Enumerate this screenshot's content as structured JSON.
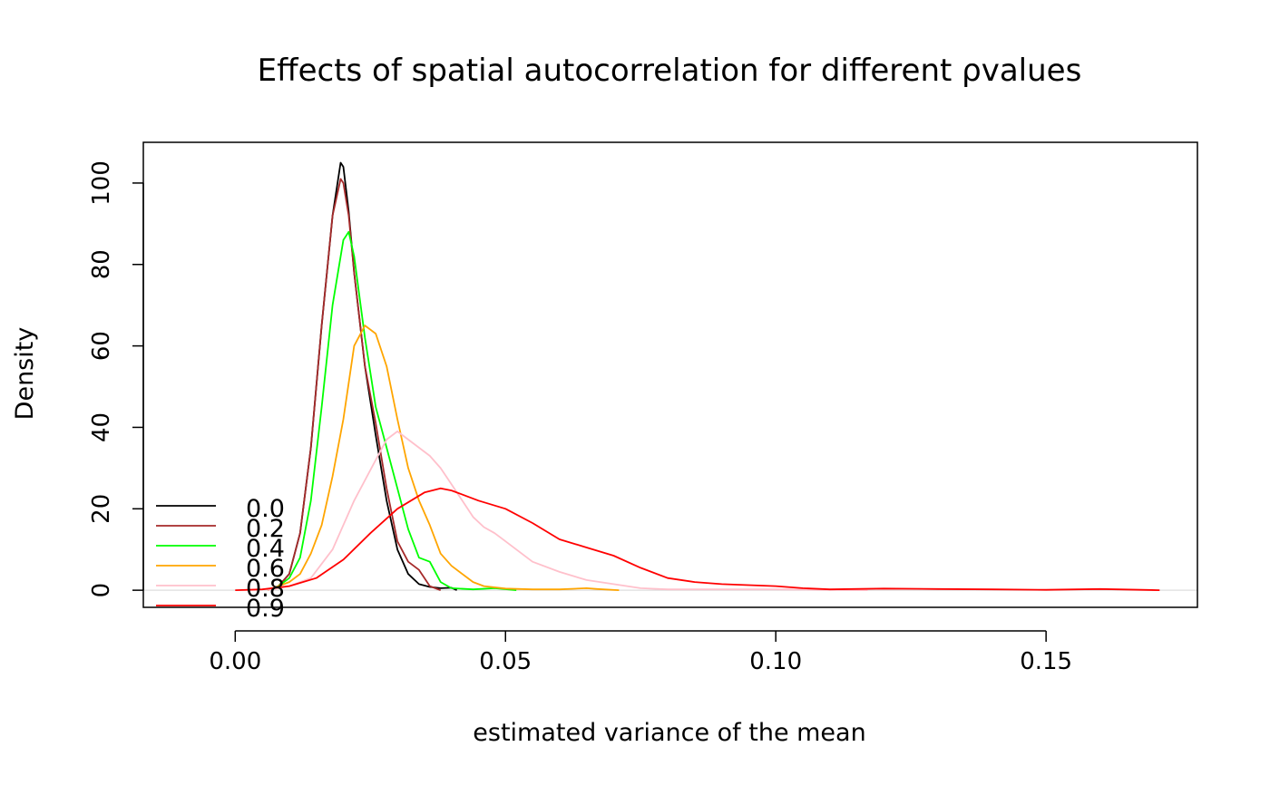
{
  "chart_data": {
    "type": "line",
    "title": "Effects of spatial autocorrelation for different ρvalues",
    "xlabel": "estimated variance of the mean",
    "ylabel": "Density",
    "xlim": [
      -0.017,
      0.178
    ],
    "ylim": [
      -4.2,
      110
    ],
    "xticks": [
      {
        "value": 0.0,
        "label": "0.00"
      },
      {
        "value": 0.05,
        "label": "0.05"
      },
      {
        "value": 0.1,
        "label": "0.10"
      },
      {
        "value": 0.15,
        "label": "0.15"
      }
    ],
    "yticks": [
      {
        "value": 0,
        "label": "0"
      },
      {
        "value": 20,
        "label": "20"
      },
      {
        "value": 40,
        "label": "40"
      },
      {
        "value": 60,
        "label": "60"
      },
      {
        "value": 80,
        "label": "80"
      },
      {
        "value": 100,
        "label": "100"
      }
    ],
    "grid": false,
    "zero_line": true,
    "legend_position": "bottom-left",
    "series": [
      {
        "name": "0.0",
        "color": "#000000",
        "x": [
          0.006,
          0.008,
          0.01,
          0.012,
          0.014,
          0.016,
          0.018,
          0.0195,
          0.02,
          0.021,
          0.022,
          0.024,
          0.026,
          0.028,
          0.03,
          0.032,
          0.034,
          0.036,
          0.038,
          0.04,
          0.041
        ],
        "y": [
          0,
          1,
          4,
          14,
          35,
          65,
          92,
          105,
          104,
          93,
          78,
          55,
          38,
          22,
          10,
          4,
          1.5,
          0.8,
          0.5,
          0.6,
          0
        ]
      },
      {
        "name": "0.2",
        "color": "#a52a2a",
        "x": [
          0.006,
          0.008,
          0.01,
          0.012,
          0.014,
          0.016,
          0.018,
          0.0195,
          0.02,
          0.021,
          0.022,
          0.024,
          0.026,
          0.028,
          0.03,
          0.032,
          0.034,
          0.036,
          0.038
        ],
        "y": [
          0,
          1,
          4,
          14,
          35,
          65,
          92,
          101,
          100,
          92,
          78,
          55,
          41,
          25,
          12,
          7,
          5,
          1,
          0
        ]
      },
      {
        "name": "0.4",
        "color": "#00ff00",
        "x": [
          0.006,
          0.008,
          0.01,
          0.012,
          0.014,
          0.016,
          0.018,
          0.02,
          0.021,
          0.022,
          0.024,
          0.026,
          0.028,
          0.03,
          0.032,
          0.034,
          0.036,
          0.038,
          0.04,
          0.044,
          0.048,
          0.052
        ],
        "y": [
          0,
          1,
          3,
          8,
          22,
          45,
          70,
          86,
          88,
          82,
          62,
          45,
          35,
          25,
          15,
          8,
          7,
          2,
          0.5,
          0.2,
          0.5,
          0
        ]
      },
      {
        "name": "0.6",
        "color": "#ffa500",
        "x": [
          0.006,
          0.008,
          0.01,
          0.012,
          0.014,
          0.016,
          0.018,
          0.02,
          0.022,
          0.024,
          0.026,
          0.028,
          0.03,
          0.032,
          0.034,
          0.036,
          0.038,
          0.04,
          0.042,
          0.044,
          0.046,
          0.05,
          0.055,
          0.06,
          0.065,
          0.067,
          0.071
        ],
        "y": [
          0,
          1,
          2,
          4,
          9,
          16,
          28,
          42,
          60,
          65,
          63,
          55,
          42,
          30,
          22,
          16,
          9,
          6,
          4,
          2,
          1,
          0.4,
          0.2,
          0.2,
          0.5,
          0.3,
          0
        ]
      },
      {
        "name": "0.8",
        "color": "#ffc0cb",
        "x": [
          0.006,
          0.01,
          0.014,
          0.018,
          0.022,
          0.026,
          0.028,
          0.03,
          0.032,
          0.034,
          0.036,
          0.038,
          0.04,
          0.042,
          0.044,
          0.046,
          0.048,
          0.05,
          0.055,
          0.06,
          0.065,
          0.07,
          0.075,
          0.08,
          0.09,
          0.1,
          0.11,
          0.117
        ],
        "y": [
          0,
          1,
          3,
          10,
          22,
          32,
          37,
          39,
          37,
          35,
          33,
          30,
          26,
          22,
          18,
          15.5,
          14,
          12,
          7,
          4.5,
          2.5,
          1.5,
          0.5,
          0.2,
          0.2,
          0.2,
          0.1,
          0
        ]
      },
      {
        "name": "0.9",
        "color": "#ff0000",
        "x": [
          0.0,
          0.005,
          0.01,
          0.015,
          0.02,
          0.025,
          0.03,
          0.035,
          0.038,
          0.04,
          0.045,
          0.05,
          0.055,
          0.06,
          0.065,
          0.07,
          0.075,
          0.08,
          0.085,
          0.09,
          0.1,
          0.105,
          0.11,
          0.12,
          0.13,
          0.14,
          0.15,
          0.16,
          0.171
        ],
        "y": [
          0,
          0.2,
          1,
          3,
          7.5,
          14,
          20,
          24,
          25,
          24.5,
          22,
          20,
          16.5,
          12.5,
          10.5,
          8.5,
          5.5,
          3,
          2,
          1.5,
          1,
          0.5,
          0.2,
          0.4,
          0.3,
          0.2,
          0.1,
          0.3,
          0
        ]
      }
    ]
  }
}
